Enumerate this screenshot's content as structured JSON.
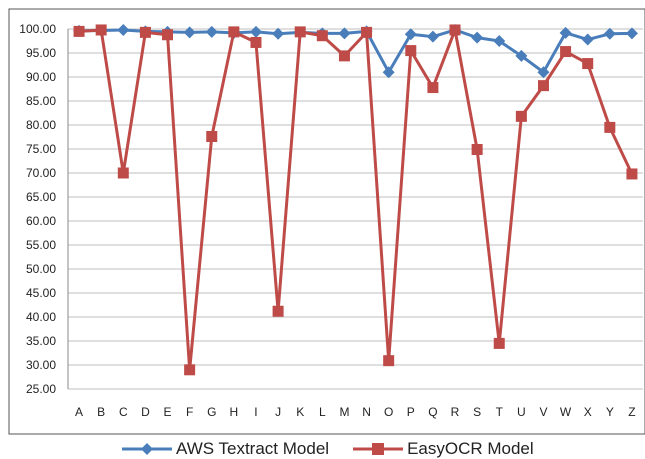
{
  "chart_data": {
    "type": "line",
    "title": "",
    "xlabel": "",
    "ylabel": "",
    "categories": [
      "A",
      "B",
      "C",
      "D",
      "E",
      "F",
      "G",
      "H",
      "I",
      "J",
      "K",
      "L",
      "M",
      "N",
      "O",
      "P",
      "Q",
      "R",
      "S",
      "T",
      "U",
      "V",
      "W",
      "X",
      "Y",
      "Z"
    ],
    "ylim": [
      25,
      100
    ],
    "ytick_step": 5,
    "ytick_format": "2dp",
    "grid": true,
    "legend_position": "bottom",
    "series": [
      {
        "name": "AWS Textract Model",
        "color": "#4a7ebb",
        "marker": "diamond",
        "values": [
          99.6,
          99.7,
          99.8,
          99.5,
          99.4,
          99.3,
          99.4,
          99.2,
          99.4,
          99.0,
          99.3,
          99.1,
          99.1,
          99.5,
          91.0,
          98.9,
          98.4,
          99.8,
          98.2,
          97.5,
          94.4,
          91.0,
          99.2,
          97.8,
          99.0,
          99.1
        ]
      },
      {
        "name": "EasyOCR Model",
        "color": "#be4b48",
        "marker": "square",
        "values": [
          99.5,
          99.8,
          70.0,
          99.3,
          98.8,
          29.0,
          77.6,
          99.4,
          97.2,
          41.2,
          99.4,
          98.6,
          94.4,
          99.3,
          30.9,
          95.5,
          87.8,
          99.8,
          74.9,
          34.5,
          81.8,
          88.2,
          95.3,
          92.8,
          79.5,
          69.8
        ]
      }
    ]
  }
}
